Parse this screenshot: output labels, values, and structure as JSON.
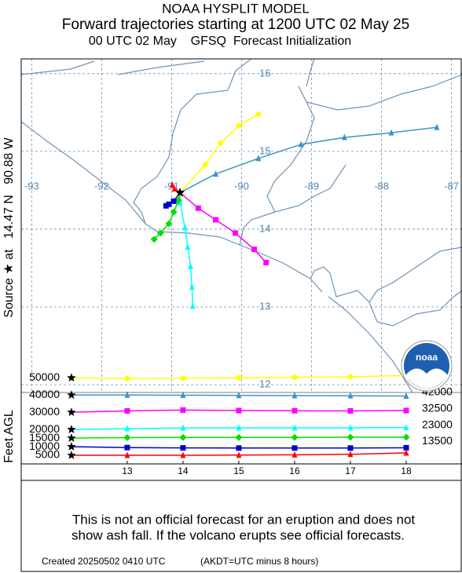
{
  "header": {
    "title": "NOAA HYSPLIT MODEL",
    "subtitle": "Forward trajectories starting at 1200 UTC 02 May 25",
    "info": "00 UTC 02 May    GFSQ  Forecast Initialization"
  },
  "logo": "noaa",
  "chart_data": [
    {
      "type": "trajectory",
      "y_label": "Source ★ at   14.47 N   90.88 W",
      "xlim": [
        -93.15,
        -86.85
      ],
      "ylim": [
        11.9,
        16.19
      ],
      "xticks": [
        -93,
        -92,
        -91,
        -90,
        -89,
        -88,
        -87
      ],
      "yticks": [
        12,
        13,
        14,
        15,
        16
      ],
      "grid": true,
      "series": [
        {
          "color": "#ffff00",
          "marker": "circle",
          "x": [
            -90.88,
            -90.52,
            -90.3,
            -90.04,
            -89.76
          ],
          "y": [
            14.47,
            14.83,
            15.11,
            15.33,
            15.48
          ]
        },
        {
          "color": "#3f93c4",
          "marker": "triangle",
          "x": [
            -90.88,
            -90.37,
            -89.76,
            -89.15,
            -88.53,
            -87.86,
            -87.21
          ],
          "y": [
            14.47,
            14.71,
            14.91,
            15.09,
            15.18,
            15.24,
            15.31
          ]
        },
        {
          "color": "#ff00ff",
          "marker": "square",
          "x": [
            -90.88,
            -90.62,
            -90.37,
            -90.09,
            -89.82,
            -89.65
          ],
          "y": [
            14.47,
            14.27,
            14.12,
            13.95,
            13.74,
            13.57
          ]
        },
        {
          "color": "#00ffff",
          "marker": "triangle",
          "x": [
            -90.88,
            -90.88,
            -90.81,
            -90.77,
            -90.73,
            -90.71,
            -90.7
          ],
          "y": [
            14.47,
            14.34,
            14.02,
            13.77,
            13.52,
            13.26,
            13.01
          ]
        },
        {
          "color": "#00e000",
          "marker": "diamond",
          "x": [
            -90.88,
            -90.9,
            -90.97,
            -91.04,
            -91.16,
            -91.25
          ],
          "y": [
            14.47,
            14.37,
            14.22,
            14.07,
            13.95,
            13.87
          ]
        },
        {
          "color": "#0000cc",
          "marker": "square",
          "x": [
            -90.88,
            -90.97,
            -91.04,
            -91.08
          ],
          "y": [
            14.47,
            14.36,
            14.32,
            14.3
          ]
        },
        {
          "color": "#ff0000",
          "marker": "triangle",
          "x": [
            -90.88,
            -90.96,
            -90.99
          ],
          "y": [
            14.47,
            14.52,
            14.57
          ]
        }
      ]
    },
    {
      "type": "line",
      "y_label": "Feet AGL",
      "xlim": [
        11.1,
        19
      ],
      "ylim": [
        0,
        52000
      ],
      "y2lim": [
        0,
        52000
      ],
      "xticks": [
        13,
        14,
        15,
        16,
        17,
        18
      ],
      "yticks": [
        5000,
        10000,
        15000,
        20000,
        30000,
        40000,
        50000
      ],
      "y2ticks": [
        13500,
        23000,
        32500,
        42000
      ],
      "x": [
        12,
        13,
        14,
        15,
        16,
        17,
        18
      ],
      "series": [
        {
          "color": "#ffff00",
          "marker": "circle",
          "values": [
            50000,
            49600,
            49800,
            50000,
            50300,
            50600,
            51400
          ]
        },
        {
          "color": "#3f93c4",
          "marker": "triangle",
          "values": [
            40000,
            40000,
            39900,
            39800,
            39700,
            39600,
            39400
          ]
        },
        {
          "color": "#ff00ff",
          "marker": "square",
          "values": [
            30000,
            30800,
            31300,
            31000,
            30900,
            30800,
            31000
          ]
        },
        {
          "color": "#00ffff",
          "marker": "triangle",
          "values": [
            20000,
            20500,
            20900,
            21000,
            21000,
            21000,
            21100
          ]
        },
        {
          "color": "#00e000",
          "marker": "diamond",
          "values": [
            15000,
            15300,
            15400,
            15400,
            15400,
            15500,
            15500
          ]
        },
        {
          "color": "#0000cc",
          "marker": "square",
          "values": [
            10000,
            9500,
            9300,
            9200,
            9200,
            9200,
            9400
          ]
        },
        {
          "color": "#ff0000",
          "marker": "triangle",
          "values": [
            5000,
            5000,
            5000,
            5100,
            5300,
            5600,
            6400
          ]
        }
      ]
    }
  ],
  "footer": {
    "disclaimer": [
      "This is not an official forecast for an eruption and does not",
      "show ash fall. If the volcano erupts see official forecasts."
    ],
    "created": "Created 20250502 0410 UTC",
    "timezone": "(AKDT=UTC minus 8 hours)"
  }
}
